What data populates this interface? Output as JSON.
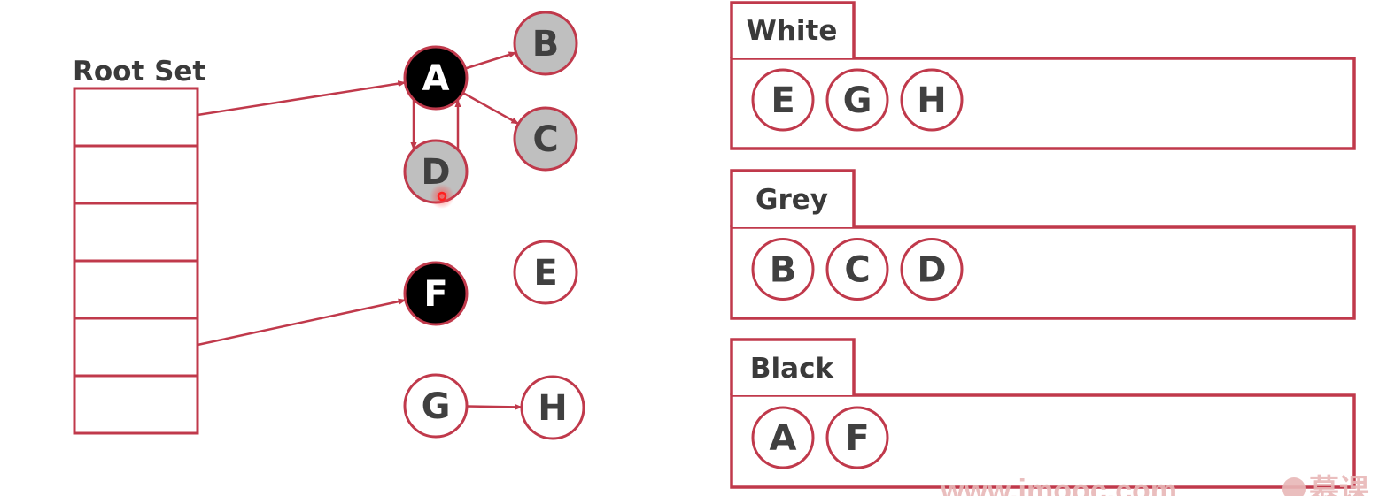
{
  "root_set": {
    "label": "Root Set",
    "slots": 6
  },
  "colors": {
    "edge": "#c0394b",
    "black_fill": "#000000",
    "black_text": "#ffffff",
    "grey_fill": "#bfbfbf",
    "grey_text": "#404040",
    "white_fill": "#ffffff",
    "white_text": "#404040",
    "cursor": "#ff2020"
  },
  "nodes": [
    {
      "id": "A",
      "label": "A",
      "color": "black"
    },
    {
      "id": "B",
      "label": "B",
      "color": "grey"
    },
    {
      "id": "C",
      "label": "C",
      "color": "grey"
    },
    {
      "id": "D",
      "label": "D",
      "color": "grey"
    },
    {
      "id": "E",
      "label": "E",
      "color": "white"
    },
    {
      "id": "F",
      "label": "F",
      "color": "black"
    },
    {
      "id": "G",
      "label": "G",
      "color": "white"
    },
    {
      "id": "H",
      "label": "H",
      "color": "white"
    }
  ],
  "edges": [
    {
      "from": "root-slot-0",
      "to": "A"
    },
    {
      "from": "root-slot-4",
      "to": "F"
    },
    {
      "from": "A",
      "to": "B"
    },
    {
      "from": "A",
      "to": "C"
    },
    {
      "from": "A",
      "to": "D"
    },
    {
      "from": "D",
      "to": "A"
    },
    {
      "from": "G",
      "to": "H"
    }
  ],
  "sets": [
    {
      "title": "White",
      "items": [
        "E",
        "G",
        "H"
      ]
    },
    {
      "title": "Grey",
      "items": [
        "B",
        "C",
        "D"
      ]
    },
    {
      "title": "Black",
      "items": [
        "A",
        "F"
      ]
    }
  ],
  "watermark": {
    "site": "www.imooc.com",
    "brand": "慕课"
  }
}
